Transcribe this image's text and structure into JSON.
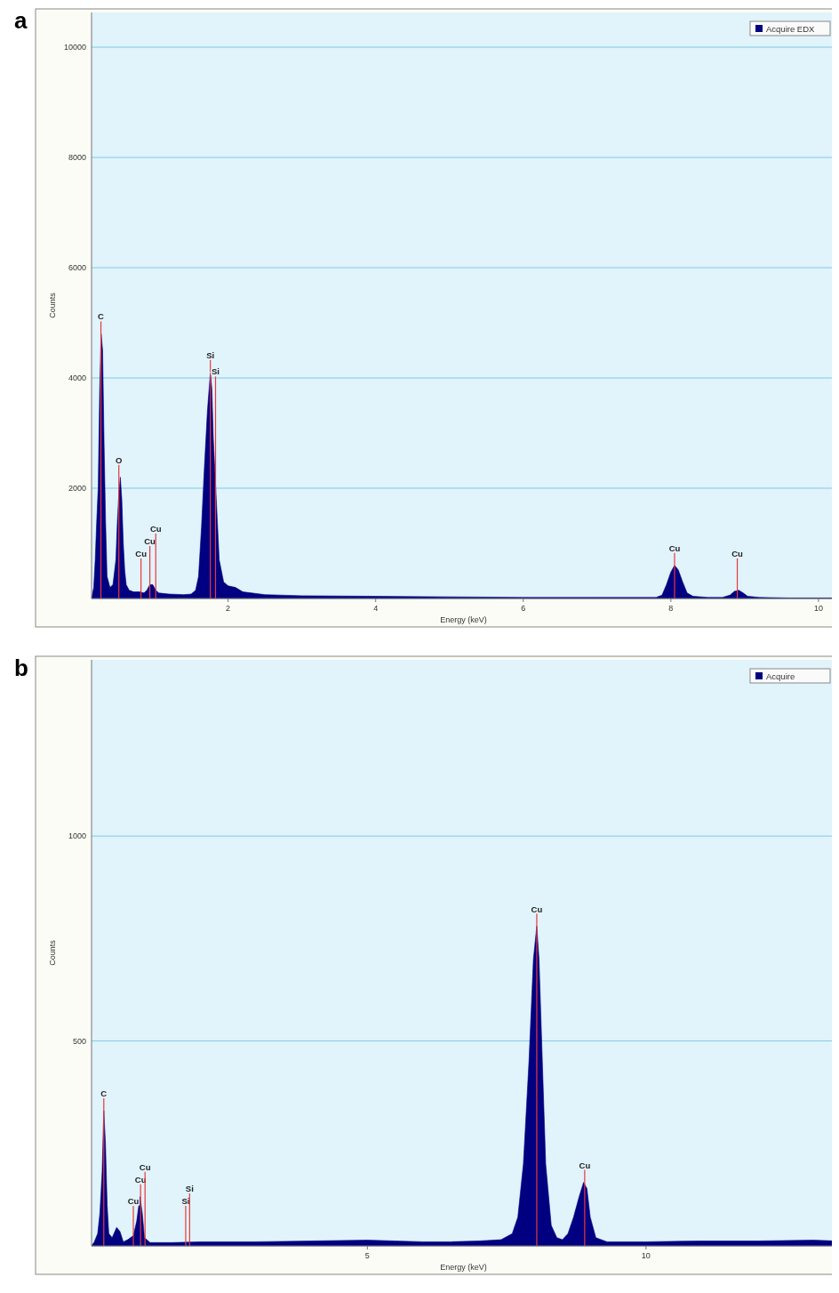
{
  "chart_data": [
    {
      "type": "area",
      "title": "a",
      "xlabel": "Energy (keV)",
      "ylabel": "Counts",
      "xlim": [
        0.15,
        10.23
      ],
      "xticks": [
        2,
        4,
        6,
        8,
        10
      ],
      "ylim": [
        0,
        10630
      ],
      "yticks": [
        2000,
        4000,
        6000,
        8000,
        10000
      ],
      "grid": "y",
      "legend": "top right",
      "series": [
        {
          "name": "Acquire EDX",
          "color": "#000080",
          "x": [
            0.15,
            0.18,
            0.2,
            0.22,
            0.24,
            0.26,
            0.28,
            0.3,
            0.32,
            0.34,
            0.36,
            0.4,
            0.44,
            0.48,
            0.5,
            0.52,
            0.54,
            0.56,
            0.58,
            0.6,
            0.62,
            0.66,
            0.72,
            0.8,
            0.86,
            0.9,
            0.94,
            0.98,
            1.02,
            1.06,
            1.2,
            1.4,
            1.5,
            1.56,
            1.6,
            1.64,
            1.68,
            1.72,
            1.76,
            1.78,
            1.8,
            1.84,
            1.88,
            1.94,
            2.0,
            2.1,
            2.2,
            2.5,
            3,
            4,
            5,
            6,
            7,
            7.8,
            7.88,
            7.94,
            8.0,
            8.05,
            8.1,
            8.16,
            8.22,
            8.3,
            8.5,
            8.7,
            8.8,
            8.86,
            8.92,
            8.98,
            9.04,
            9.2,
            9.6,
            10,
            10.2
          ],
          "values": [
            0,
            200,
            700,
            1400,
            2000,
            3750,
            4800,
            4500,
            2800,
            1400,
            400,
            200,
            250,
            700,
            1400,
            1900,
            2200,
            1800,
            1000,
            500,
            250,
            150,
            120,
            120,
            100,
            150,
            250,
            250,
            150,
            100,
            80,
            70,
            80,
            150,
            400,
            1300,
            2400,
            3400,
            4100,
            3800,
            2900,
            1800,
            700,
            300,
            230,
            200,
            120,
            70,
            50,
            40,
            30,
            20,
            20,
            20,
            60,
            250,
            480,
            600,
            520,
            300,
            100,
            40,
            20,
            20,
            60,
            130,
            150,
            100,
            40,
            20,
            10,
            10,
            10
          ]
        }
      ],
      "ref_lines": [
        {
          "axis": "x",
          "value": 0.277,
          "label": "C",
          "color": "#e8383a"
        },
        {
          "axis": "x",
          "value": 0.52,
          "label": "O",
          "color": "#e8383a"
        },
        {
          "axis": "x",
          "value": 0.82,
          "label": "Cu",
          "color": "#e8383a"
        },
        {
          "axis": "x",
          "value": 0.94,
          "label": "Cu",
          "color": "#e8383a"
        },
        {
          "axis": "x",
          "value": 1.02,
          "label": "Cu",
          "color": "#e8383a"
        },
        {
          "axis": "x",
          "value": 1.76,
          "label": "Si",
          "color": "#e8383a"
        },
        {
          "axis": "x",
          "value": 1.83,
          "label": "Si",
          "color": "#e8383a"
        },
        {
          "axis": "x",
          "value": 8.05,
          "label": "Cu",
          "color": "#e8383a"
        },
        {
          "axis": "x",
          "value": 8.9,
          "label": "Cu",
          "color": "#e8383a"
        }
      ]
    },
    {
      "type": "area",
      "title": "b",
      "xlabel": "Energy (keV)",
      "ylabel": "Counts",
      "xlim": [
        0.05,
        13.4
      ],
      "xticks": [
        5,
        10
      ],
      "ylim": [
        0,
        1430
      ],
      "yticks": [
        500,
        1000
      ],
      "grid": "y",
      "legend": "top right",
      "series": [
        {
          "name": "Acquire",
          "color": "#000080",
          "x": [
            0.05,
            0.1,
            0.16,
            0.2,
            0.24,
            0.27,
            0.3,
            0.33,
            0.36,
            0.42,
            0.5,
            0.56,
            0.62,
            0.7,
            0.8,
            0.86,
            0.92,
            0.96,
            1.0,
            1.1,
            1.5,
            2,
            3,
            4,
            5,
            5.5,
            6,
            6.5,
            7,
            7.4,
            7.6,
            7.7,
            7.8,
            7.9,
            7.98,
            8.04,
            8.08,
            8.14,
            8.2,
            8.3,
            8.4,
            8.5,
            8.6,
            8.7,
            8.8,
            8.88,
            8.94,
            9.0,
            9.1,
            9.3,
            10,
            11,
            12,
            13,
            13.4
          ],
          "values": [
            0,
            10,
            30,
            80,
            180,
            330,
            250,
            100,
            30,
            20,
            45,
            35,
            10,
            15,
            25,
            60,
            120,
            80,
            20,
            8,
            8,
            10,
            10,
            12,
            14,
            12,
            10,
            10,
            12,
            15,
            30,
            70,
            200,
            450,
            700,
            780,
            700,
            450,
            200,
            50,
            20,
            15,
            30,
            70,
            120,
            155,
            140,
            70,
            20,
            10,
            10,
            12,
            12,
            14,
            12
          ]
        }
      ],
      "ref_lines": [
        {
          "axis": "x",
          "value": 0.27,
          "label": "C",
          "color": "#e8383a"
        },
        {
          "axis": "x",
          "value": 0.8,
          "label": "Cu",
          "color": "#e8383a"
        },
        {
          "axis": "x",
          "value": 0.93,
          "label": "Cu",
          "color": "#e8383a"
        },
        {
          "axis": "x",
          "value": 1.01,
          "label": "Cu",
          "color": "#e8383a"
        },
        {
          "axis": "x",
          "value": 1.74,
          "label": "Si",
          "color": "#e8383a"
        },
        {
          "axis": "x",
          "value": 1.81,
          "label": "Si",
          "color": "#e8383a"
        },
        {
          "axis": "x",
          "value": 8.04,
          "label": "Cu",
          "color": "#e8383a"
        },
        {
          "axis": "x",
          "value": 8.9,
          "label": "Cu",
          "color": "#e8383a"
        }
      ]
    }
  ]
}
